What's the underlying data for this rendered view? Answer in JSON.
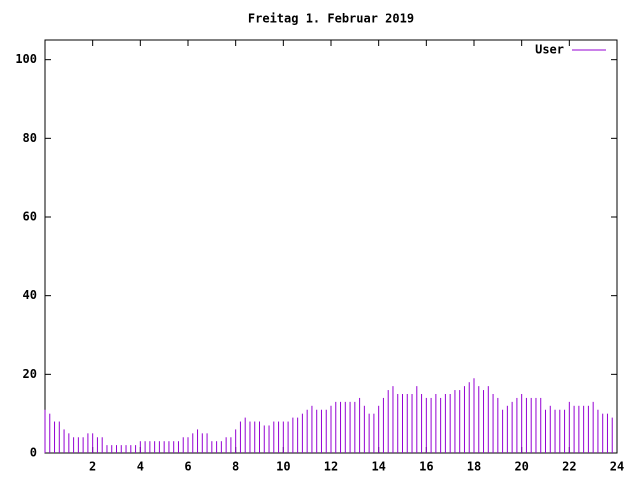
{
  "chart_data": {
    "type": "impulses",
    "title": "Freitag 1. Februar 2019",
    "x": [
      0,
      0.2,
      0.4,
      0.6,
      0.8,
      1,
      1.2,
      1.4,
      1.6,
      1.8,
      2,
      2.2,
      2.4,
      2.6,
      2.8,
      3,
      3.2,
      3.4,
      3.6,
      3.8,
      4,
      4.2,
      4.4,
      4.6,
      4.8,
      5,
      5.2,
      5.4,
      5.6,
      5.8,
      6,
      6.2,
      6.4,
      6.6,
      6.8,
      7,
      7.2,
      7.4,
      7.6,
      7.8,
      8,
      8.2,
      8.4,
      8.6,
      8.8,
      9,
      9.2,
      9.4,
      9.6,
      9.8,
      10,
      10.2,
      10.4,
      10.6,
      10.8,
      11,
      11.2,
      11.4,
      11.6,
      11.8,
      12,
      12.2,
      12.4,
      12.6,
      12.8,
      13,
      13.2,
      13.4,
      13.6,
      13.8,
      14,
      14.2,
      14.4,
      14.6,
      14.8,
      15,
      15.2,
      15.4,
      15.6,
      15.8,
      16,
      16.2,
      16.4,
      16.6,
      16.8,
      17,
      17.2,
      17.4,
      17.6,
      17.8,
      18,
      18.2,
      18.4,
      18.6,
      18.8,
      19,
      19.2,
      19.4,
      19.6,
      19.8,
      20,
      20.2,
      20.4,
      20.6,
      20.8,
      21,
      21.2,
      21.4,
      21.6,
      21.8,
      22,
      22.2,
      22.4,
      22.6,
      22.8,
      23,
      23.2,
      23.4,
      23.6,
      23.8
    ],
    "series": [
      {
        "name": "User",
        "color": "#9400d3",
        "values": [
          11,
          10,
          8,
          8,
          6,
          5,
          4,
          4,
          4,
          5,
          5,
          4,
          4,
          2,
          2,
          2,
          2,
          2,
          2,
          2,
          3,
          3,
          3,
          3,
          3,
          3,
          3,
          3,
          3,
          4,
          4,
          5,
          6,
          5,
          5,
          3,
          3,
          3,
          4,
          4,
          6,
          8,
          9,
          8,
          8,
          8,
          7,
          7,
          8,
          8,
          8,
          8,
          9,
          9,
          10,
          11,
          12,
          11,
          11,
          11,
          12,
          13,
          13,
          13,
          13,
          13,
          14,
          12,
          10,
          10,
          12,
          14,
          16,
          17,
          15,
          15,
          15,
          15,
          17,
          15,
          14,
          14,
          15,
          14,
          15,
          15,
          16,
          16,
          17,
          18,
          19,
          17,
          16,
          17,
          15,
          14,
          11,
          12,
          13,
          14,
          15,
          14,
          14,
          14,
          14,
          11,
          12,
          11,
          11,
          11,
          13,
          12,
          12,
          12,
          12,
          13,
          11,
          10,
          10,
          9
        ]
      }
    ],
    "xlim": [
      0,
      24
    ],
    "xticks": [
      2,
      4,
      6,
      8,
      10,
      12,
      14,
      16,
      18,
      20,
      22,
      24
    ],
    "ylim": [
      0,
      105
    ],
    "yticks": [
      0,
      20,
      40,
      60,
      80,
      100
    ]
  }
}
